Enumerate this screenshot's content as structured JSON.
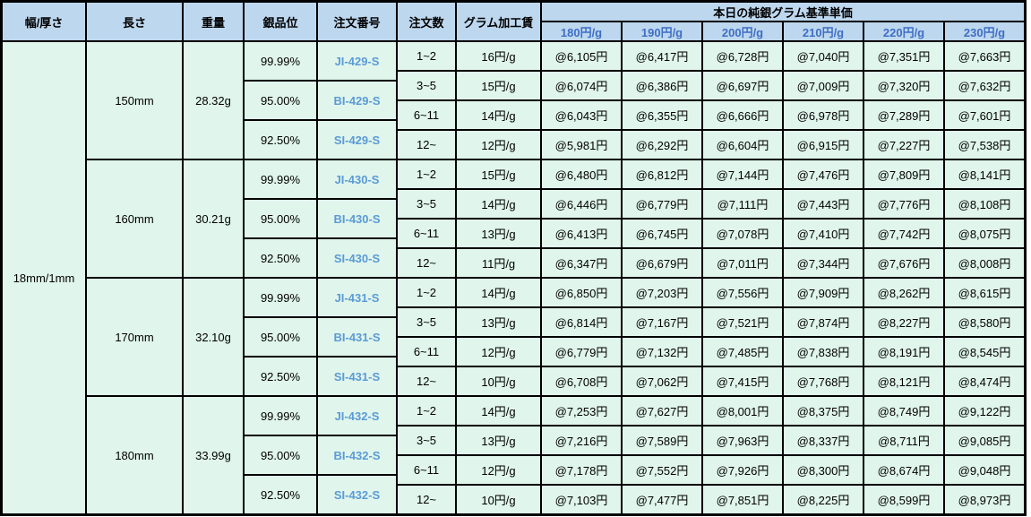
{
  "colors": {
    "border": "#000000",
    "header_bg": "#bdd7ee",
    "cell_bg": "#e0f5ec",
    "price_header_text": "#3f6ec4",
    "order_number_text": "#5b9bd5"
  },
  "table": {
    "headers": {
      "width_thickness": "幅/厚さ",
      "length": "長さ",
      "weight": "重量",
      "purity": "銀品位",
      "order_no": "注文番号",
      "order_qty": "注文数",
      "gram_fee": "グラム加工賃",
      "price_group": "本日の純銀グラム基準単価",
      "price_cols": [
        "180円/g",
        "190円/g",
        "200円/g",
        "210円/g",
        "220円/g",
        "230円/g"
      ]
    },
    "width_thickness_value": "18mm/1mm",
    "blocks": [
      {
        "length": "150mm",
        "weight": "28.32g",
        "purities": [
          {
            "purity": "99.99%",
            "order_no": "JI-429-S"
          },
          {
            "purity": "95.00%",
            "order_no": "BI-429-S"
          },
          {
            "purity": "92.50%",
            "order_no": "SI-429-S"
          }
        ],
        "rows": [
          {
            "qty": "1~2",
            "fee": "16円/g",
            "prices": [
              "@6,105円",
              "@6,417円",
              "@6,728円",
              "@7,040円",
              "@7,351円",
              "@7,663円"
            ]
          },
          {
            "qty": "3~5",
            "fee": "15円/g",
            "prices": [
              "@6,074円",
              "@6,386円",
              "@6,697円",
              "@7,009円",
              "@7,320円",
              "@7,632円"
            ]
          },
          {
            "qty": "6~11",
            "fee": "14円/g",
            "prices": [
              "@6,043円",
              "@6,355円",
              "@6,666円",
              "@6,978円",
              "@7,289円",
              "@7,601円"
            ]
          },
          {
            "qty": "12~",
            "fee": "12円/g",
            "prices": [
              "@5,981円",
              "@6,292円",
              "@6,604円",
              "@6,915円",
              "@7,227円",
              "@7,538円"
            ]
          }
        ]
      },
      {
        "length": "160mm",
        "weight": "30.21g",
        "purities": [
          {
            "purity": "99.99%",
            "order_no": "JI-430-S"
          },
          {
            "purity": "95.00%",
            "order_no": "BI-430-S"
          },
          {
            "purity": "92.50%",
            "order_no": "SI-430-S"
          }
        ],
        "rows": [
          {
            "qty": "1~2",
            "fee": "15円/g",
            "prices": [
              "@6,480円",
              "@6,812円",
              "@7,144円",
              "@7,476円",
              "@7,809円",
              "@8,141円"
            ]
          },
          {
            "qty": "3~5",
            "fee": "14円/g",
            "prices": [
              "@6,446円",
              "@6,779円",
              "@7,111円",
              "@7,443円",
              "@7,776円",
              "@8,108円"
            ]
          },
          {
            "qty": "6~11",
            "fee": "13円/g",
            "prices": [
              "@6,413円",
              "@6,745円",
              "@7,078円",
              "@7,410円",
              "@7,742円",
              "@8,075円"
            ]
          },
          {
            "qty": "12~",
            "fee": "11円/g",
            "prices": [
              "@6,347円",
              "@6,679円",
              "@7,011円",
              "@7,344円",
              "@7,676円",
              "@8,008円"
            ]
          }
        ]
      },
      {
        "length": "170mm",
        "weight": "32.10g",
        "purities": [
          {
            "purity": "99.99%",
            "order_no": "JI-431-S"
          },
          {
            "purity": "95.00%",
            "order_no": "BI-431-S"
          },
          {
            "purity": "92.50%",
            "order_no": "SI-431-S"
          }
        ],
        "rows": [
          {
            "qty": "1~2",
            "fee": "14円/g",
            "prices": [
              "@6,850円",
              "@7,203円",
              "@7,556円",
              "@7,909円",
              "@8,262円",
              "@8,615円"
            ]
          },
          {
            "qty": "3~5",
            "fee": "13円/g",
            "prices": [
              "@6,814円",
              "@7,167円",
              "@7,521円",
              "@7,874円",
              "@8,227円",
              "@8,580円"
            ]
          },
          {
            "qty": "6~11",
            "fee": "12円/g",
            "prices": [
              "@6,779円",
              "@7,132円",
              "@7,485円",
              "@7,838円",
              "@8,191円",
              "@8,545円"
            ]
          },
          {
            "qty": "12~",
            "fee": "10円/g",
            "prices": [
              "@6,708円",
              "@7,062円",
              "@7,415円",
              "@7,768円",
              "@8,121円",
              "@8,474円"
            ]
          }
        ]
      },
      {
        "length": "180mm",
        "weight": "33.99g",
        "purities": [
          {
            "purity": "99.99%",
            "order_no": "JI-432-S"
          },
          {
            "purity": "95.00%",
            "order_no": "BI-432-S"
          },
          {
            "purity": "92.50%",
            "order_no": "SI-432-S"
          }
        ],
        "rows": [
          {
            "qty": "1~2",
            "fee": "14円/g",
            "prices": [
              "@7,253円",
              "@7,627円",
              "@8,001円",
              "@8,375円",
              "@8,749円",
              "@9,122円"
            ]
          },
          {
            "qty": "3~5",
            "fee": "13円/g",
            "prices": [
              "@7,216円",
              "@7,589円",
              "@7,963円",
              "@8,337円",
              "@8,711円",
              "@9,085円"
            ]
          },
          {
            "qty": "6~11",
            "fee": "12円/g",
            "prices": [
              "@7,178円",
              "@7,552円",
              "@7,926円",
              "@8,300円",
              "@8,674円",
              "@9,048円"
            ]
          },
          {
            "qty": "12~",
            "fee": "10円/g",
            "prices": [
              "@7,103円",
              "@7,477円",
              "@7,851円",
              "@8,225円",
              "@8,599円",
              "@8,973円"
            ]
          }
        ]
      }
    ]
  }
}
